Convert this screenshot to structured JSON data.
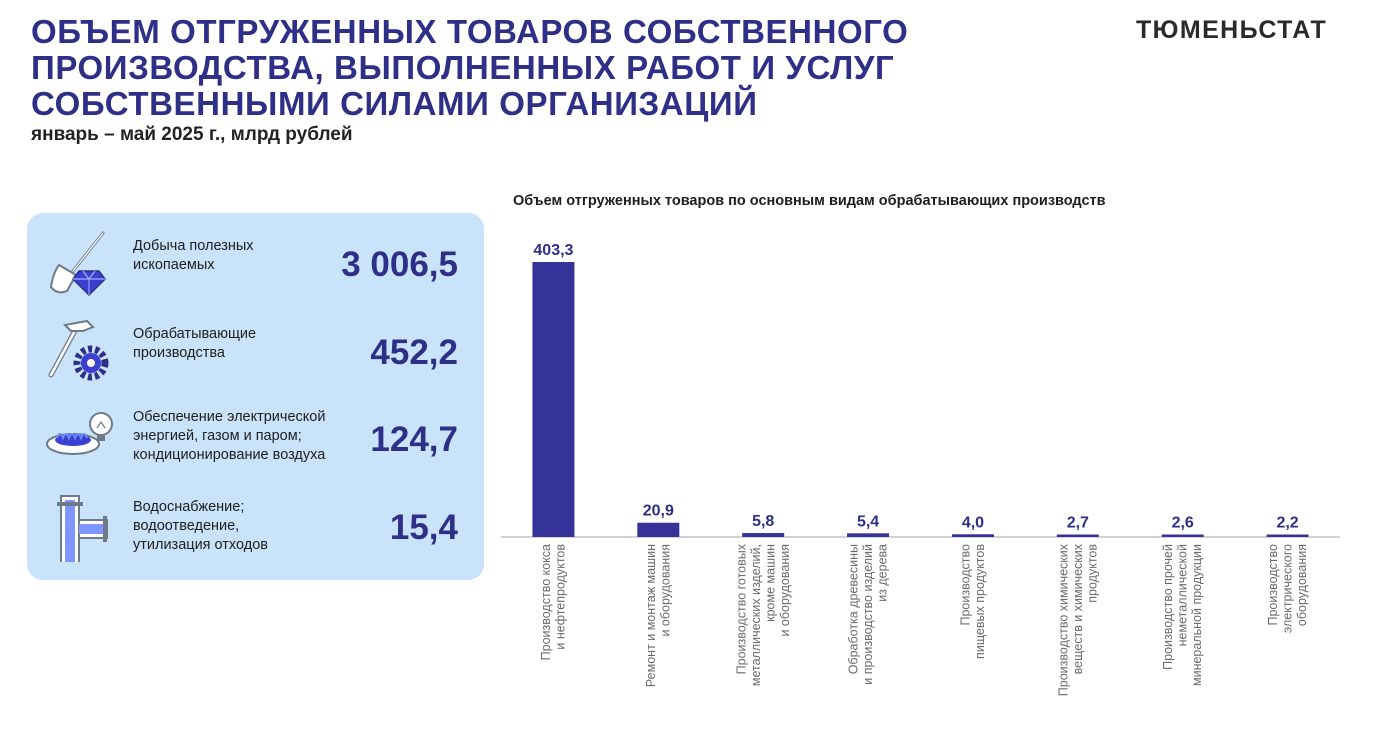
{
  "header": {
    "title_lines": [
      "ОБЪЕМ ОТГРУЖЕННЫХ ТОВАРОВ СОБСТВЕННОГО",
      "ПРОИЗВОДСТВА, ВЫПОЛНЕННЫХ РАБОТ И УСЛУГ",
      "СОБСТВЕННЫМИ СИЛАМИ ОРГАНИЗАЦИЙ"
    ],
    "subtitle": "январь – май 2025 г., млрд рублей",
    "brand": "ТЮМЕНЬСТАТ"
  },
  "summary": [
    {
      "icon": "shovel-diamond-icon",
      "label_lines": [
        "Добыча полезных",
        "ископаемых"
      ],
      "value": "3 006,5"
    },
    {
      "icon": "hammer-gear-icon",
      "label_lines": [
        "Обрабатывающие",
        "производства"
      ],
      "value": "452,2"
    },
    {
      "icon": "gas-burner-bulb-icon",
      "label_lines": [
        "Обеспечение электрической",
        "энергией, газом и паром;",
        "кондиционирование воздуха"
      ],
      "value": "124,7"
    },
    {
      "icon": "water-pipe-icon",
      "label_lines": [
        "Водоснабжение;",
        "водоотведение,",
        "утилизация отходов"
      ],
      "value": "15,4"
    }
  ],
  "colors": {
    "accent": "#2e2f86",
    "panel": "#c9e3fb",
    "bar": "#35339a"
  },
  "chart_data": {
    "type": "bar",
    "title": "Объем отгруженных товаров по основным видам обрабатывающих производств",
    "xlabel": "",
    "ylabel": "",
    "ylim": [
      0,
      403.3
    ],
    "grid": false,
    "categories": [
      [
        "Производство кокса",
        "и нефтепродуктов"
      ],
      [
        "Ремонт и монтаж машин",
        "и оборудования"
      ],
      [
        "Производство готовых",
        "металлических изделий,",
        "кроме машин",
        "и оборудования"
      ],
      [
        "Обработка древесины",
        "и производство изделий",
        "из дерева"
      ],
      [
        "Производство",
        "пищевых продуктов"
      ],
      [
        "Производство химических",
        "веществ и химических",
        "продуктов"
      ],
      [
        "Производство прочей",
        "неметаллической",
        "минеральной продукции"
      ],
      [
        "Производство",
        "электрического",
        "оборудования"
      ]
    ],
    "values": [
      403.3,
      20.9,
      5.8,
      5.4,
      4.0,
      2.7,
      2.6,
      2.2
    ],
    "value_labels": [
      "403,3",
      "20,9",
      "5,8",
      "5,4",
      "4,0",
      "2,7",
      "2,6",
      "2,2"
    ]
  }
}
